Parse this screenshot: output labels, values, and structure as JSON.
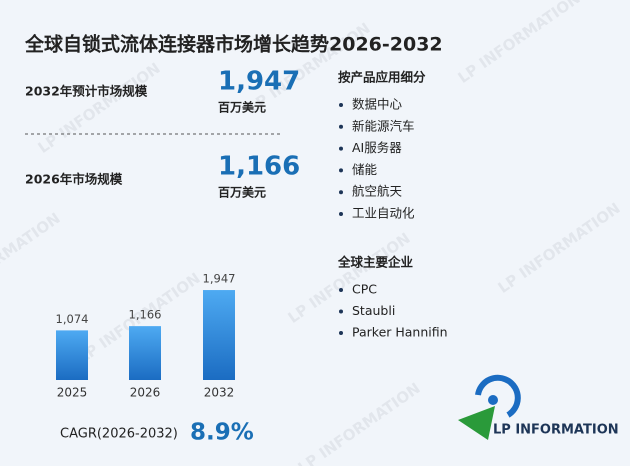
{
  "title": "全球自锁式流体连接器市场增长趋势2026-2032",
  "stats": [
    {
      "label": "2032年预计市场规模",
      "value": "1,947",
      "unit": "百万美元"
    },
    {
      "label": "2026年市场规模",
      "value": "1,166",
      "unit": "百万美元"
    }
  ],
  "chart_data": {
    "type": "bar",
    "categories": [
      "2025",
      "2026",
      "2032"
    ],
    "values": [
      1074,
      1166,
      1947
    ],
    "value_labels": [
      "1,074",
      "1,166",
      "1,947"
    ],
    "color": "#2a86dc"
  },
  "cagr": {
    "label": "CAGR(2026-2032)",
    "value": "8.9%"
  },
  "segments": {
    "title": "按产品应用细分",
    "items": [
      "数据中心",
      "新能源汽车",
      "AI服务器",
      "储能",
      "航空航天",
      "工业自动化"
    ]
  },
  "companies": {
    "title": "全球主要企业",
    "items": [
      "CPC",
      "Staubli",
      "Parker Hannifin"
    ]
  },
  "logo": "LP INFORMATION"
}
